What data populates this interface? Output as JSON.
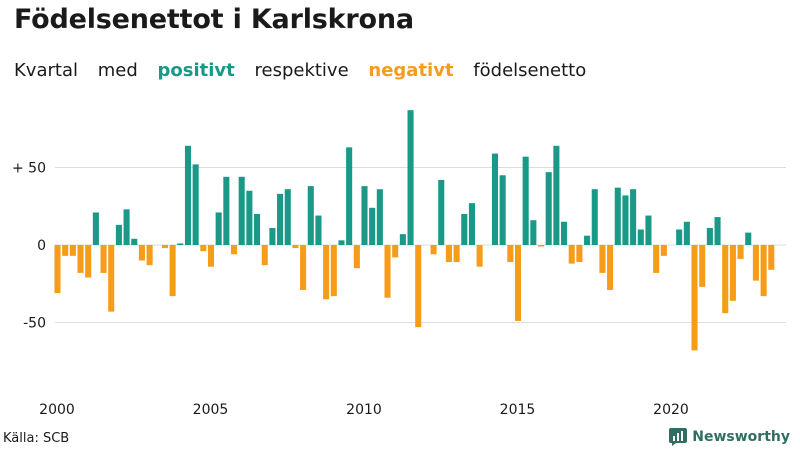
{
  "title": "Födelsenettot i Karlskrona",
  "subtitle": {
    "part1": "Kvartal",
    "part2": "med",
    "positive": "positivt",
    "part3": "respektive",
    "negative": "negativt",
    "part4": "födelsenetto"
  },
  "source": "Källa: SCB",
  "brand": "Newsworthy",
  "colors": {
    "positive": "#1a9988",
    "negative": "#f59c1a",
    "grid": "#dddddd",
    "brand": "#2f6f62"
  },
  "chart_data": {
    "type": "bar",
    "title": "Födelsenettot i Karlskrona",
    "xlabel": "",
    "ylabel": "",
    "ylim": [
      -85,
      90
    ],
    "x_range": [
      2000.0,
      2024.0
    ],
    "y_ticks": [
      50,
      0,
      -50
    ],
    "y_tick_labels": [
      "+ 50",
      "0",
      "-50"
    ],
    "x_ticks": [
      2000,
      2005,
      2010,
      2015,
      2020
    ],
    "x_tick_labels": [
      "2000",
      "2005",
      "2010",
      "2015",
      "2020"
    ],
    "grid": true,
    "quarters_start": "2000 Q1",
    "values": [
      -31,
      -7,
      -7,
      -18,
      -21,
      21,
      -18,
      -43,
      13,
      23,
      4,
      -10,
      -13,
      0,
      -2,
      -33,
      1,
      64,
      52,
      -4,
      -14,
      21,
      44,
      -6,
      44,
      35,
      20,
      -13,
      11,
      33,
      36,
      -2,
      -29,
      38,
      19,
      -35,
      -33,
      3,
      63,
      -15,
      38,
      24,
      36,
      -34,
      -8,
      7,
      87,
      -53,
      0,
      -6,
      42,
      -11,
      -11,
      20,
      27,
      -14,
      0,
      59,
      45,
      -11,
      -49,
      57,
      16,
      -1,
      47,
      64,
      15,
      -12,
      -11,
      6,
      36,
      -18,
      -29,
      37,
      32,
      36,
      10,
      19,
      -18,
      -7,
      0,
      10,
      15,
      -68,
      -27,
      11,
      18,
      -44,
      -36,
      -9,
      8,
      -23,
      -33,
      -16
    ]
  }
}
